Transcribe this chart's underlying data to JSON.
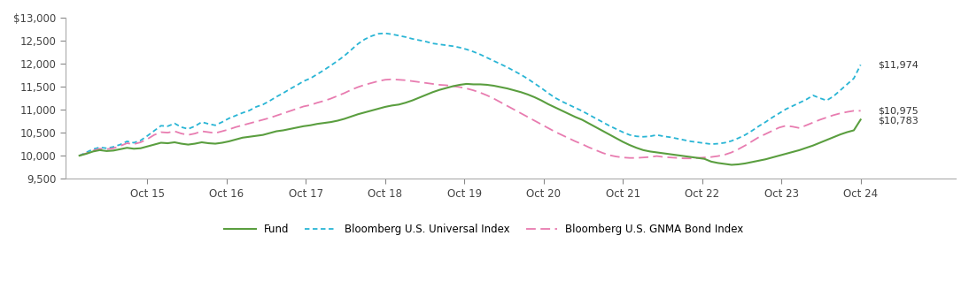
{
  "x_labels": [
    "Oct 15",
    "Oct 16",
    "Oct 17",
    "Oct 18",
    "Oct 19",
    "Oct 20",
    "Oct 21",
    "Oct 22",
    "Oct 23",
    "Oct 24"
  ],
  "ylim": [
    9500,
    13000
  ],
  "yticks": [
    9500,
    10000,
    10500,
    11000,
    11500,
    12000,
    12500,
    13000
  ],
  "fund_color": "#5a9e3f",
  "bloomberg_univ_color": "#29b5d5",
  "bloomberg_gnma_color": "#e87cb0",
  "fund_label": "Fund",
  "bloomberg_univ_label": "Bloomberg U.S. Universal Index",
  "bloomberg_gnma_label": "Bloomberg U.S. GNMA Bond Index",
  "fund_end_value": "$10,783",
  "bloomberg_univ_end_value": "$11,974",
  "bloomberg_gnma_end_value": "$10,975",
  "fund": [
    10000,
    10040,
    10090,
    10120,
    10100,
    10110,
    10140,
    10170,
    10150,
    10160,
    10200,
    10240,
    10280,
    10270,
    10290,
    10260,
    10240,
    10260,
    10290,
    10270,
    10260,
    10280,
    10310,
    10350,
    10390,
    10410,
    10430,
    10450,
    10490,
    10530,
    10550,
    10580,
    10610,
    10640,
    10660,
    10690,
    10710,
    10730,
    10760,
    10800,
    10850,
    10900,
    10940,
    10980,
    11020,
    11060,
    11090,
    11110,
    11150,
    11200,
    11260,
    11320,
    11380,
    11430,
    11470,
    11510,
    11540,
    11560,
    11550,
    11550,
    11540,
    11520,
    11490,
    11460,
    11420,
    11380,
    11330,
    11270,
    11200,
    11120,
    11050,
    10980,
    10910,
    10840,
    10780,
    10700,
    10620,
    10540,
    10460,
    10380,
    10300,
    10230,
    10170,
    10120,
    10090,
    10070,
    10050,
    10030,
    10010,
    9990,
    9970,
    9950,
    9930,
    9870,
    9840,
    9820,
    9800,
    9810,
    9830,
    9860,
    9890,
    9920,
    9960,
    10000,
    10040,
    10080,
    10120,
    10170,
    10220,
    10280,
    10340,
    10400,
    10460,
    10510,
    10550,
    10783
  ],
  "bloomberg_univ": [
    10000,
    10070,
    10140,
    10180,
    10160,
    10190,
    10240,
    10310,
    10280,
    10330,
    10430,
    10540,
    10650,
    10640,
    10700,
    10620,
    10580,
    10640,
    10730,
    10690,
    10660,
    10730,
    10810,
    10870,
    10930,
    10980,
    11060,
    11110,
    11190,
    11280,
    11360,
    11450,
    11530,
    11620,
    11680,
    11770,
    11860,
    11960,
    12060,
    12170,
    12300,
    12430,
    12530,
    12600,
    12650,
    12660,
    12640,
    12610,
    12580,
    12540,
    12510,
    12480,
    12440,
    12420,
    12400,
    12380,
    12350,
    12310,
    12260,
    12200,
    12130,
    12060,
    11990,
    11920,
    11840,
    11760,
    11670,
    11570,
    11470,
    11360,
    11260,
    11180,
    11110,
    11040,
    10970,
    10890,
    10810,
    10730,
    10650,
    10580,
    10510,
    10450,
    10420,
    10410,
    10420,
    10450,
    10420,
    10400,
    10370,
    10340,
    10310,
    10290,
    10270,
    10250,
    10260,
    10280,
    10320,
    10380,
    10450,
    10540,
    10640,
    10730,
    10830,
    10920,
    11010,
    11080,
    11150,
    11220,
    11310,
    11250,
    11200,
    11290,
    11420,
    11550,
    11680,
    11974
  ],
  "bloomberg_gnma": [
    10000,
    10050,
    10110,
    10150,
    10140,
    10160,
    10210,
    10270,
    10250,
    10290,
    10360,
    10450,
    10510,
    10500,
    10530,
    10480,
    10450,
    10480,
    10530,
    10510,
    10490,
    10530,
    10570,
    10620,
    10660,
    10700,
    10740,
    10780,
    10820,
    10870,
    10920,
    10970,
    11020,
    11070,
    11100,
    11150,
    11190,
    11240,
    11300,
    11360,
    11430,
    11490,
    11540,
    11580,
    11620,
    11650,
    11660,
    11650,
    11640,
    11620,
    11600,
    11580,
    11560,
    11540,
    11530,
    11510,
    11490,
    11460,
    11420,
    11370,
    11310,
    11240,
    11160,
    11080,
    11000,
    10920,
    10840,
    10760,
    10680,
    10600,
    10520,
    10450,
    10380,
    10310,
    10250,
    10180,
    10120,
    10060,
    10010,
    9980,
    9960,
    9950,
    9950,
    9960,
    9970,
    9990,
    9970,
    9960,
    9950,
    9940,
    9940,
    9950,
    9960,
    9970,
    9990,
    10020,
    10070,
    10140,
    10220,
    10310,
    10400,
    10470,
    10540,
    10610,
    10650,
    10630,
    10600,
    10660,
    10720,
    10780,
    10830,
    10880,
    10920,
    10950,
    10975,
    10975
  ]
}
